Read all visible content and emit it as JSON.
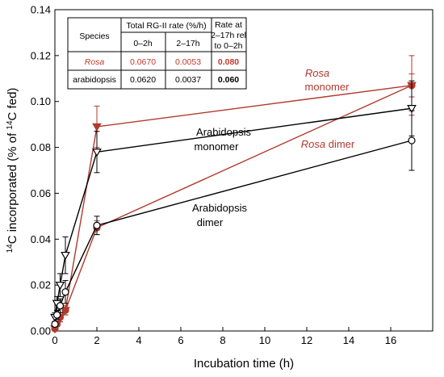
{
  "chart_data": {
    "type": "line",
    "xlabel": "Incubation time (h)",
    "ylabel_parts": {
      "sup1": "14",
      "main": "C incorporated (% of ",
      "sup2": "14",
      "tail": "C fed)"
    },
    "xlim": [
      0,
      18
    ],
    "ylim": [
      0,
      0.14
    ],
    "xticks": [
      0,
      2,
      4,
      6,
      8,
      10,
      12,
      14,
      16
    ],
    "yticks": [
      0.0,
      0.02,
      0.04,
      0.06,
      0.08,
      0.1,
      0.12,
      0.14
    ],
    "ytick_labels": [
      "0.00",
      "0.02",
      "0.04",
      "0.06",
      "0.08",
      "0.10",
      "0.12",
      "0.14"
    ],
    "grid": false,
    "series": [
      {
        "name": "Rosa monomer",
        "color": "#b03a2e",
        "marker": "triangle-down-filled",
        "x": [
          0,
          0.1,
          0.25,
          0.5,
          2,
          17
        ],
        "y": [
          0.001,
          0.003,
          0.006,
          0.009,
          0.089,
          0.107
        ],
        "err": [
          0.001,
          0.001,
          0.002,
          0.002,
          0.009,
          0.013
        ]
      },
      {
        "name": "Rosa dimer",
        "color": "#b03a2e",
        "marker": "circle-filled",
        "x": [
          0,
          0.1,
          0.25,
          0.5,
          2,
          17
        ],
        "y": [
          0.001,
          0.003,
          0.006,
          0.009,
          0.045,
          0.107
        ],
        "err": [
          0.001,
          0.001,
          0.002,
          0.002,
          0.003,
          0.005
        ]
      },
      {
        "name": "Arabidopsis monomer",
        "color": "#000000",
        "marker": "triangle-down-open",
        "x": [
          0,
          0.1,
          0.25,
          0.5,
          2,
          17
        ],
        "y": [
          0.006,
          0.012,
          0.02,
          0.033,
          0.078,
          0.097
        ],
        "err": [
          0.002,
          0.003,
          0.005,
          0.008,
          0.009,
          0.012
        ]
      },
      {
        "name": "Arabidopsis dimer",
        "color": "#000000",
        "marker": "circle-open",
        "x": [
          0,
          0.1,
          0.25,
          0.5,
          2,
          17
        ],
        "y": [
          0.003,
          0.007,
          0.011,
          0.017,
          0.046,
          0.083
        ],
        "err": [
          0.001,
          0.002,
          0.003,
          0.005,
          0.004,
          0.013
        ]
      }
    ],
    "annotations": [
      {
        "key": "rosa-monomer",
        "italic": "Rosa",
        "line2": "monomer",
        "color": "#b03a2e"
      },
      {
        "key": "rosa-dimer",
        "italic": "Rosa",
        "rest": " dimer",
        "color": "#b03a2e"
      },
      {
        "key": "arab-monomer",
        "line1": "Arabidopsis",
        "line2": "monomer",
        "color": "#000000"
      },
      {
        "key": "arab-dimer",
        "line1": "Arabidopsis",
        "line2": "dimer",
        "color": "#000000"
      }
    ],
    "inset_table": {
      "col_species": "Species",
      "group_header": "Total RG-II rate (%/h)",
      "sub_headers": [
        "0–2h",
        "2–17h"
      ],
      "ratio_header_lines": [
        "Rate at",
        "2–17h rel",
        "to 0–2h"
      ],
      "rows": [
        {
          "species": "Rosa",
          "r1": "0.0670",
          "r2": "0.0053",
          "ratio": "0.080",
          "color": "#c0392b",
          "italic": true
        },
        {
          "species": "arabidopsis",
          "r1": "0.0620",
          "r2": "0.0037",
          "ratio": "0.060",
          "color": "#000000",
          "italic": false
        }
      ]
    }
  }
}
